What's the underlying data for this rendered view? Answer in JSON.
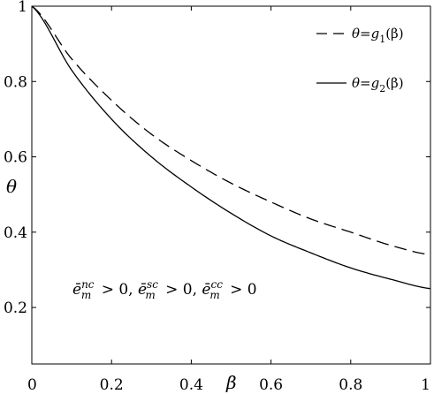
{
  "chart_data": {
    "type": "line",
    "xlabel": "β",
    "ylabel": "θ",
    "xlim": [
      0,
      1
    ],
    "ylim": [
      0.05,
      1
    ],
    "xticks": [
      "0",
      "0.2",
      "0.4",
      "0.6",
      "0.8",
      "1"
    ],
    "yticks": [
      "0.2",
      "0.4",
      "0.6",
      "0.8",
      "1"
    ],
    "grid": false,
    "legend_position": "top-right",
    "x": [
      0,
      0.1,
      0.2,
      0.3,
      0.4,
      0.5,
      0.6,
      0.7,
      0.8,
      0.9,
      1.0
    ],
    "series": [
      {
        "name": "θ=g1(β)",
        "legend_main": "θ=g",
        "legend_sub": "1",
        "legend_tail": "(β)",
        "style": "dashed",
        "values": [
          1.0,
          0.86,
          0.75,
          0.66,
          0.59,
          0.53,
          0.48,
          0.435,
          0.4,
          0.365,
          0.34
        ]
      },
      {
        "name": "θ=g2(β)",
        "legend_main": "θ=g",
        "legend_sub": "2",
        "legend_tail": "(β)",
        "style": "solid",
        "values": [
          1.0,
          0.83,
          0.7,
          0.6,
          0.52,
          0.45,
          0.39,
          0.345,
          0.305,
          0.275,
          0.25
        ]
      }
    ],
    "annotation": "ē_m^nc > 0, ē_m^sc > 0, ē_m^cc > 0",
    "annotation_parts": [
      {
        "base": "ē",
        "sub": "m",
        "sup": "nc",
        "tail": " > 0, "
      },
      {
        "base": "ē",
        "sub": "m",
        "sup": "sc",
        "tail": " > 0, "
      },
      {
        "base": "ē",
        "sub": "m",
        "sup": "cc",
        "tail": " > 0"
      }
    ]
  }
}
